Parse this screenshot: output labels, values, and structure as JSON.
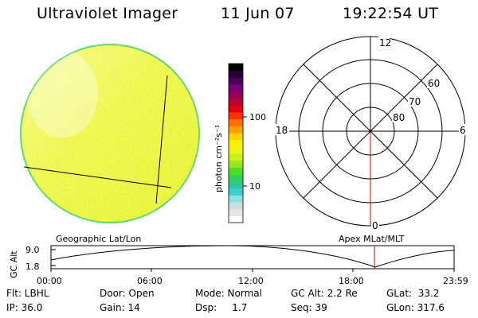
{
  "header": {
    "title": "Ultraviolet Imager",
    "date": "11 Jun 07",
    "time": "19:22:54 UT"
  },
  "colorbar": {
    "label": "photon cm⁻²s⁻¹",
    "tick_100": "100",
    "tick_10": "10",
    "colors": [
      "#ffffff",
      "#e6e6e6",
      "#c8dce6",
      "#8ce1e1",
      "#3ccdcd",
      "#2dc8a0",
      "#32d250",
      "#50dc1e",
      "#96e61e",
      "#c8f01e",
      "#f0f514",
      "#fff000",
      "#ffd200",
      "#ffa000",
      "#ff6e00",
      "#ff3200",
      "#e60014",
      "#be0032",
      "#96005a",
      "#780078",
      "#50005a",
      "#28003c",
      "#000000"
    ]
  },
  "image": {
    "name": "auroral-image",
    "fill": "#e8f528",
    "edge": "#5ad864"
  },
  "polar_plot": {
    "mlt_12": "12",
    "mlt_18": "18",
    "mlt_6": "6",
    "mlt_0": "0",
    "lat_60": "60",
    "lat_70": "70",
    "lat_80": "80",
    "line_color": "#c80000"
  },
  "orbit": {
    "left_title": "Geographic Lat/Lon",
    "right_title": "Apex  MLat/MLT",
    "ylabel": "GC Alt",
    "y_top": "9.0",
    "y_bottom": "1.8",
    "t0": "00:00",
    "t1": "06:00",
    "t2": "12:00",
    "t3": "18:00",
    "t4": "23:59",
    "marker_color": "#c80000"
  },
  "status": {
    "row1": {
      "flt": "Flt: LBHL",
      "door": "Door: Open",
      "mode": "Mode: Normal",
      "gcalt": "GC Alt: 2.2 Re",
      "glat": "GLat:  33.2"
    },
    "row2": {
      "ip": "IP: 36.0",
      "gain": "Gain: 14",
      "dsp": "Dsp:     1.7",
      "seq": "Seq: 39",
      "glon": "GLon: 317.6"
    }
  }
}
